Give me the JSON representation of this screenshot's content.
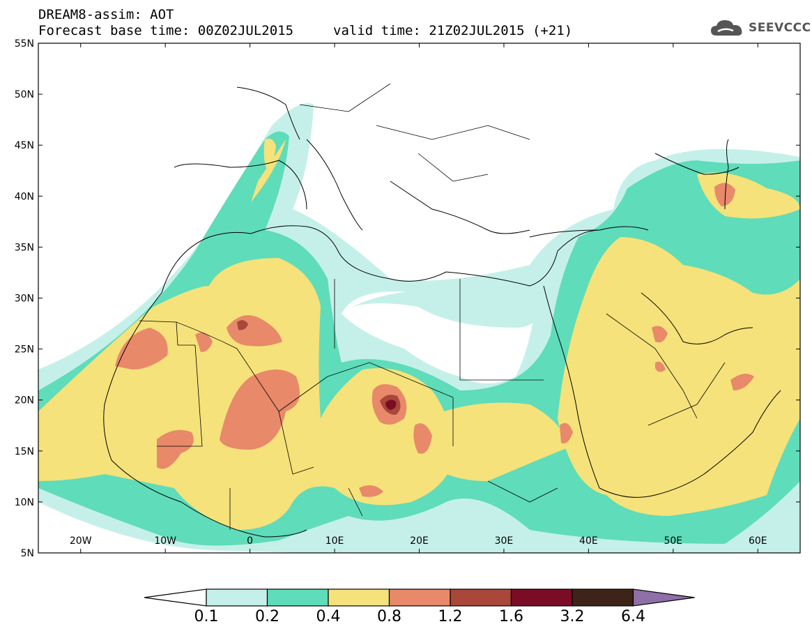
{
  "header": {
    "title": "DREAM8-assim: AOT",
    "base_time": "Forecast base time: 00Z02JUL2015",
    "valid_time": "valid time: 21Z02JUL2015 (+21)"
  },
  "logo": {
    "text": "SEEVCCC",
    "icon": "cloud-icon"
  },
  "map": {
    "lon_range": [
      -25,
      65
    ],
    "lat_range": [
      5,
      55
    ],
    "lat_ticks": [
      "5N",
      "10N",
      "15N",
      "20N",
      "25N",
      "30N",
      "35N",
      "40N",
      "45N",
      "50N",
      "55N"
    ],
    "lon_ticks": [
      "20W",
      "10W",
      "0",
      "10E",
      "20E",
      "30E",
      "40E",
      "50E",
      "60E"
    ],
    "variable": "AOT"
  },
  "colorbar": {
    "levels": [
      "0.1",
      "0.2",
      "0.4",
      "0.8",
      "1.2",
      "1.6",
      "3.2",
      "6.4"
    ],
    "colors": [
      "#ffffff",
      "#c5f0ea",
      "#5fdcb9",
      "#f5e27a",
      "#e8896a",
      "#a8473a",
      "#7a0d25",
      "#3e2418",
      "#8f6fa8"
    ]
  }
}
